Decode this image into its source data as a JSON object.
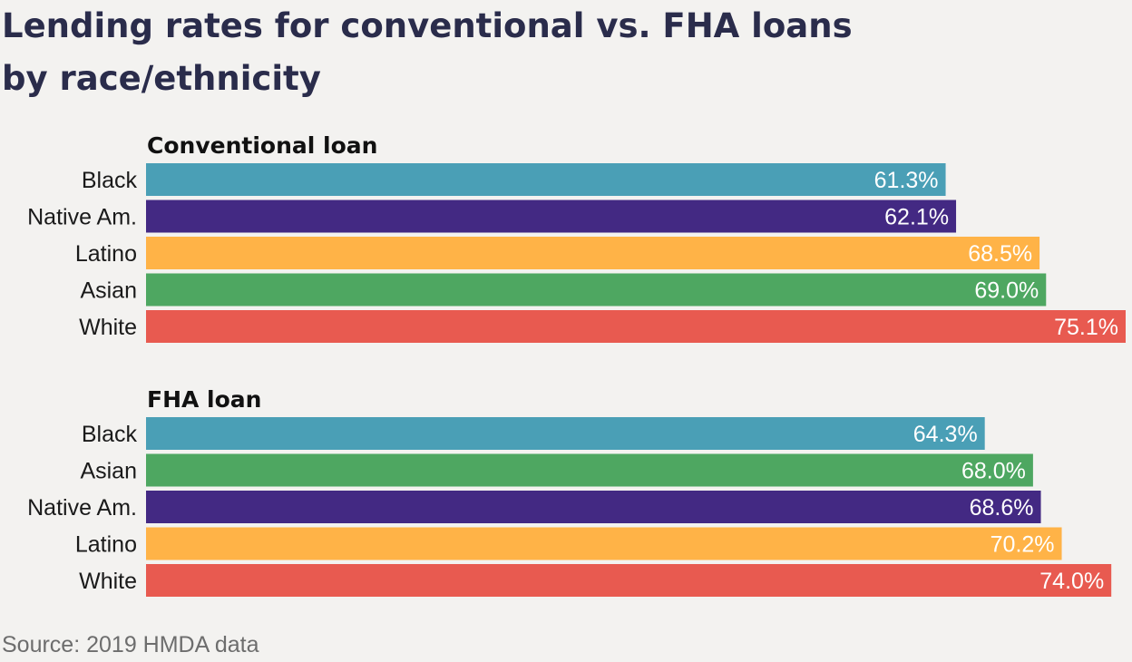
{
  "title_lines": [
    "Lending rates for conventional vs. FHA loans",
    "by race/ethnicity"
  ],
  "source": "Source: 2019 HMDA data",
  "chart_data": [
    {
      "type": "bar",
      "orientation": "horizontal",
      "title": "Conventional loan",
      "categories": [
        "Black",
        "Native Am.",
        "Latino",
        "Asian",
        "White"
      ],
      "values": [
        61.3,
        62.1,
        68.5,
        69.0,
        75.1
      ],
      "value_labels": [
        "61.3%",
        "62.1%",
        "68.5%",
        "69.0%",
        "75.1%"
      ],
      "colors": [
        "#4a9fb6",
        "#432983",
        "#ffb347",
        "#4ea761",
        "#e85a50"
      ],
      "unit": "%",
      "grid": false
    },
    {
      "type": "bar",
      "orientation": "horizontal",
      "title": "FHA loan",
      "categories": [
        "Black",
        "Asian",
        "Native Am.",
        "Latino",
        "White"
      ],
      "values": [
        64.3,
        68.0,
        68.6,
        70.2,
        74.0
      ],
      "value_labels": [
        "64.3%",
        "68.0%",
        "68.6%",
        "70.2%",
        "74.0%"
      ],
      "colors": [
        "#4a9fb6",
        "#4ea761",
        "#432983",
        "#ffb347",
        "#e85a50"
      ],
      "unit": "%",
      "grid": false
    }
  ]
}
